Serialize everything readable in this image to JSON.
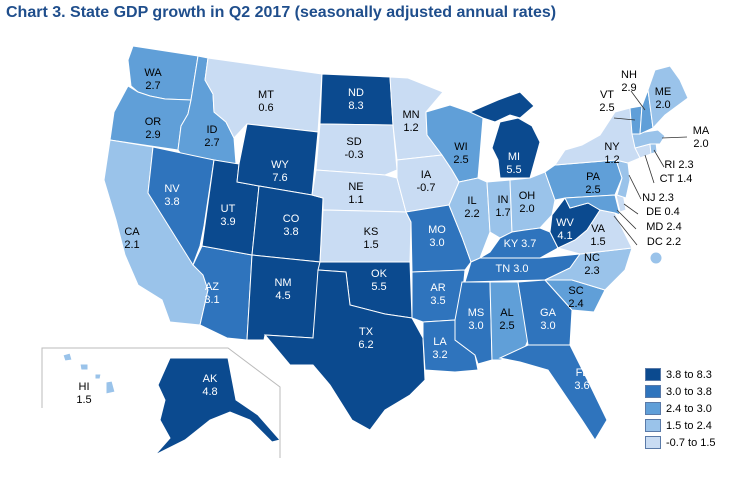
{
  "title": "Chart 3.  State GDP growth in Q2 2017 (seasonally adjusted annual rates)",
  "colors": {
    "c5": "#0b4a8f",
    "c4": "#2f74bd",
    "c3": "#609fd8",
    "c2": "#9ac3ea",
    "c1": "#c9dcf3",
    "label_dark": "#ffffff",
    "label_light": "#000000"
  },
  "legend": [
    {
      "label": "3.8 to 8.3",
      "class": "c5"
    },
    {
      "label": "3.0 to 3.8",
      "class": "c4"
    },
    {
      "label": "2.4 to 3.0",
      "class": "c3"
    },
    {
      "label": "1.5 to 2.4",
      "class": "c2"
    },
    {
      "label": "-0.7 to 1.5",
      "class": "c1"
    }
  ],
  "states": [
    {
      "abbr": "WA",
      "value": "2.7",
      "class": "c3"
    },
    {
      "abbr": "OR",
      "value": "2.9",
      "class": "c3"
    },
    {
      "abbr": "CA",
      "value": "2.1",
      "class": "c2"
    },
    {
      "abbr": "ID",
      "value": "2.7",
      "class": "c3"
    },
    {
      "abbr": "NV",
      "value": "3.8",
      "class": "c4"
    },
    {
      "abbr": "AZ",
      "value": "3.1",
      "class": "c4"
    },
    {
      "abbr": "UT",
      "value": "3.9",
      "class": "c5"
    },
    {
      "abbr": "MT",
      "value": "0.6",
      "class": "c1"
    },
    {
      "abbr": "WY",
      "value": "7.6",
      "class": "c5"
    },
    {
      "abbr": "CO",
      "value": "3.8",
      "class": "c5"
    },
    {
      "abbr": "NM",
      "value": "4.5",
      "class": "c5"
    },
    {
      "abbr": "ND",
      "value": "8.3",
      "class": "c5"
    },
    {
      "abbr": "SD",
      "value": "-0.3",
      "class": "c1"
    },
    {
      "abbr": "NE",
      "value": "1.1",
      "class": "c1"
    },
    {
      "abbr": "KS",
      "value": "1.5",
      "class": "c1"
    },
    {
      "abbr": "OK",
      "value": "5.5",
      "class": "c5"
    },
    {
      "abbr": "TX",
      "value": "6.2",
      "class": "c5"
    },
    {
      "abbr": "MN",
      "value": "1.2",
      "class": "c1"
    },
    {
      "abbr": "IA",
      "value": "-0.7",
      "class": "c1"
    },
    {
      "abbr": "MO",
      "value": "3.0",
      "class": "c4"
    },
    {
      "abbr": "AR",
      "value": "3.5",
      "class": "c4"
    },
    {
      "abbr": "LA",
      "value": "3.2",
      "class": "c4"
    },
    {
      "abbr": "WI",
      "value": "2.5",
      "class": "c3"
    },
    {
      "abbr": "IL",
      "value": "2.2",
      "class": "c2"
    },
    {
      "abbr": "MI",
      "value": "5.5",
      "class": "c5"
    },
    {
      "abbr": "IN",
      "value": "1.7",
      "class": "c2"
    },
    {
      "abbr": "OH",
      "value": "2.0",
      "class": "c2"
    },
    {
      "abbr": "KY",
      "value": "3.7",
      "class": "c4"
    },
    {
      "abbr": "TN",
      "value": "3.0",
      "class": "c4"
    },
    {
      "abbr": "MS",
      "value": "3.0",
      "class": "c4"
    },
    {
      "abbr": "AL",
      "value": "2.5",
      "class": "c3"
    },
    {
      "abbr": "GA",
      "value": "3.0",
      "class": "c4"
    },
    {
      "abbr": "FL",
      "value": "3.6",
      "class": "c4"
    },
    {
      "abbr": "SC",
      "value": "2.4",
      "class": "c3"
    },
    {
      "abbr": "NC",
      "value": "2.3",
      "class": "c2"
    },
    {
      "abbr": "VA",
      "value": "1.5",
      "class": "c1"
    },
    {
      "abbr": "WV",
      "value": "4.1",
      "class": "c5"
    },
    {
      "abbr": "PA",
      "value": "2.5",
      "class": "c3"
    },
    {
      "abbr": "NY",
      "value": "1.2",
      "class": "c1"
    },
    {
      "abbr": "VT",
      "value": "2.5",
      "class": "c3"
    },
    {
      "abbr": "NH",
      "value": "2.9",
      "class": "c3"
    },
    {
      "abbr": "ME",
      "value": "2.0",
      "class": "c2"
    },
    {
      "abbr": "MA",
      "value": "2.0",
      "class": "c2"
    },
    {
      "abbr": "RI",
      "value": "2.3",
      "class": "c2"
    },
    {
      "abbr": "CT",
      "value": "1.4",
      "class": "c1"
    },
    {
      "abbr": "NJ",
      "value": "2.3",
      "class": "c2"
    },
    {
      "abbr": "DE",
      "value": "0.4",
      "class": "c1"
    },
    {
      "abbr": "MD",
      "value": "2.4",
      "class": "c3"
    },
    {
      "abbr": "DC",
      "value": "2.2",
      "class": "c2"
    },
    {
      "abbr": "AK",
      "value": "4.8",
      "class": "c5"
    },
    {
      "abbr": "HI",
      "value": "1.5",
      "class": "c2"
    }
  ]
}
